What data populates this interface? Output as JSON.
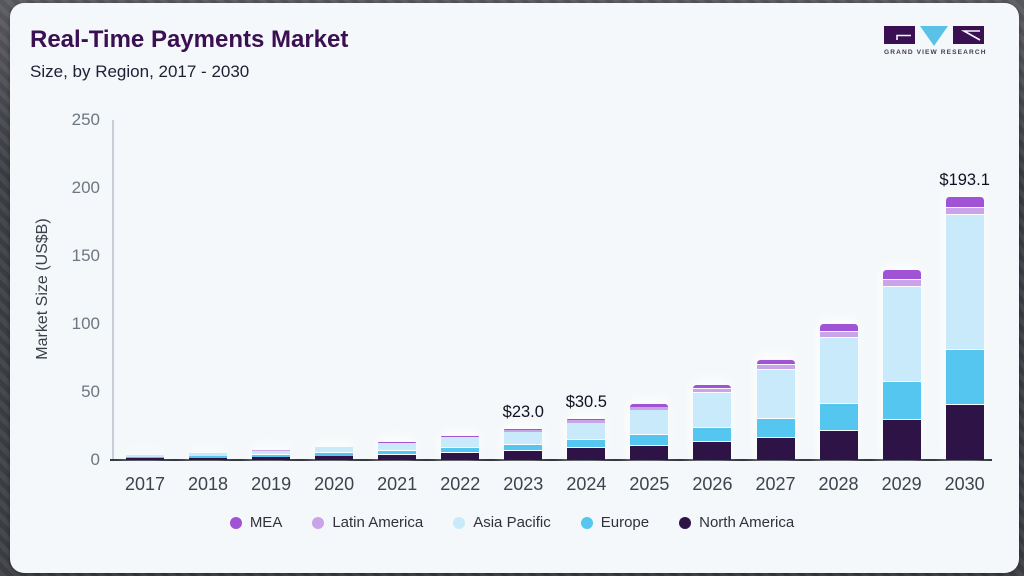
{
  "header": {
    "title": "Real-Time Payments Market",
    "subtitle": "Size, by Region, 2017 - 2030"
  },
  "logo": {
    "brand": "GVR",
    "text": "GRAND VIEW RESEARCH",
    "dark_color": "#3a1053",
    "blue_color": "#5bc2e7"
  },
  "chart_data": {
    "type": "bar",
    "stacked": true,
    "title": "Real-Time Payments Market",
    "subtitle": "Size, by Region, 2017 - 2030",
    "xlabel": "",
    "ylabel": "Market Size (US$B)",
    "ylim": [
      0,
      250
    ],
    "yticks": [
      0,
      50,
      100,
      150,
      200,
      250
    ],
    "grid": false,
    "legend_position": "bottom",
    "categories": [
      "2017",
      "2018",
      "2019",
      "2020",
      "2021",
      "2022",
      "2023",
      "2024",
      "2025",
      "2026",
      "2027",
      "2028",
      "2029",
      "2030"
    ],
    "series": [
      {
        "name": "MEA",
        "color": "#a153d6",
        "values": [
          0.15,
          0.2,
          0.2,
          0.25,
          0.3,
          0.5,
          1.0,
          1.3,
          1.9,
          2.5,
          3.9,
          5.8,
          7.3,
          7.5
        ]
      },
      {
        "name": "Latin America",
        "color": "#c9a4e8",
        "values": [
          0.15,
          0.2,
          0.2,
          0.25,
          0.3,
          0.5,
          1.5,
          1.8,
          2.2,
          3.0,
          3.5,
          4.5,
          5.7,
          5.8
        ]
      },
      {
        "name": "Asia Pacific",
        "color": "#c9eafa",
        "values": [
          1.6,
          2.2,
          3.1,
          4.3,
          5.9,
          8.0,
          9.7,
          12.9,
          18.7,
          26.3,
          36.2,
          48.8,
          69.4,
          98.6
        ]
      },
      {
        "name": "Europe",
        "color": "#54c6f0",
        "values": [
          0.8,
          1.1,
          1.5,
          2.0,
          2.6,
          3.5,
          4.4,
          5.9,
          7.8,
          10.3,
          13.9,
          19.6,
          28.0,
          41.0
        ]
      },
      {
        "name": "North America",
        "color": "#2e1347",
        "values": [
          1.3,
          1.7,
          2.3,
          3.0,
          3.9,
          5.1,
          6.4,
          8.6,
          10.4,
          12.9,
          16.4,
          21.4,
          29.6,
          40.2
        ]
      }
    ],
    "totals": [
      4.0,
      5.4,
      7.3,
      9.8,
      13.0,
      17.6,
      23.0,
      30.5,
      41.0,
      55.0,
      73.9,
      100.1,
      140.0,
      193.1
    ],
    "annotations": [
      {
        "category": "2023",
        "label": "$23.0"
      },
      {
        "category": "2024",
        "label": "$30.5"
      },
      {
        "category": "2030",
        "label": "$193.1"
      }
    ]
  },
  "colors": {
    "card_background": "#f4f8fa",
    "frame_background": "#43434a",
    "axis_line": "#c9ced6",
    "baseline": "#34383f",
    "tick_text": "#6e7680",
    "year_text": "#3d434e",
    "title_text": "#3a1053"
  }
}
